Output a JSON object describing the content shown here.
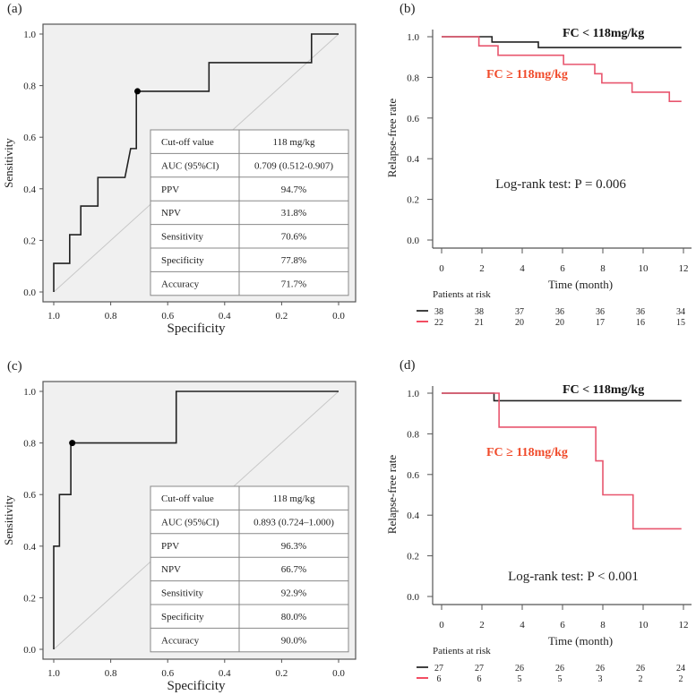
{
  "chart_data": [
    {
      "panel": "(a)",
      "type": "line",
      "subtype": "roc",
      "xlabel": "Specificity",
      "ylabel": "Sensitivity",
      "xlim": [
        1.0,
        0.0
      ],
      "ylim": [
        0.0,
        1.0
      ],
      "xticks": [
        "1.0",
        "0.8",
        "0.6",
        "0.4",
        "0.2",
        "0.0"
      ],
      "yticks": [
        "0.0",
        "0.2",
        "0.4",
        "0.6",
        "0.8",
        "1.0"
      ],
      "curve": [
        [
          1.0,
          0.0
        ],
        [
          1.0,
          0.111
        ],
        [
          0.944,
          0.111
        ],
        [
          0.944,
          0.222
        ],
        [
          0.905,
          0.222
        ],
        [
          0.905,
          0.333
        ],
        [
          0.845,
          0.333
        ],
        [
          0.845,
          0.444
        ],
        [
          0.75,
          0.444
        ],
        [
          0.73,
          0.556
        ],
        [
          0.71,
          0.556
        ],
        [
          0.71,
          0.778
        ],
        [
          0.455,
          0.778
        ],
        [
          0.455,
          0.889
        ],
        [
          0.095,
          0.889
        ],
        [
          0.095,
          1.0
        ],
        [
          0.0,
          1.0
        ]
      ],
      "cutoff_point": [
        0.706,
        0.778
      ],
      "table": [
        [
          "Cut-off value",
          "118 mg/kg"
        ],
        [
          "AUC (95%CI)",
          "0.709 (0.512-0.907)"
        ],
        [
          "PPV",
          "94.7%"
        ],
        [
          "NPV",
          "31.8%"
        ],
        [
          "Sensitivity",
          "70.6%"
        ],
        [
          "Specificity",
          "77.8%"
        ],
        [
          "Accuracy",
          "71.7%"
        ]
      ]
    },
    {
      "panel": "(b)",
      "type": "line",
      "subtype": "kaplan-meier",
      "xlabel": "Time (month)",
      "ylabel": "Relapse-free rate",
      "xlim": [
        0,
        12
      ],
      "ylim": [
        0.0,
        1.0
      ],
      "xticks": [
        "0",
        "2",
        "4",
        "6",
        "8",
        "10",
        "12"
      ],
      "yticks": [
        "0.0",
        "0.2",
        "0.4",
        "0.6",
        "0.8",
        "1.0"
      ],
      "series": [
        {
          "name": "FC < 118mg/kg",
          "color": "#222222",
          "steps": [
            [
              0,
              1.0
            ],
            [
              2.5,
              0.974
            ],
            [
              4.8,
              0.947
            ],
            [
              11.9,
              0.947
            ]
          ]
        },
        {
          "name": "FC ≥ 118mg/kg",
          "color": "#e8566e",
          "label_color": "#f04a2a",
          "steps": [
            [
              0,
              1.0
            ],
            [
              1.85,
              0.955
            ],
            [
              2.8,
              0.909
            ],
            [
              6.05,
              0.864
            ],
            [
              7.6,
              0.818
            ],
            [
              7.95,
              0.773
            ],
            [
              9.45,
              0.727
            ],
            [
              11.3,
              0.682
            ],
            [
              11.9,
              0.682
            ]
          ]
        }
      ],
      "annotation": "Log-rank test: P = 0.006",
      "risk_title": "Patients at risk",
      "risk": [
        [
          "38",
          "38",
          "37",
          "36",
          "36",
          "36",
          "34"
        ],
        [
          "22",
          "21",
          "20",
          "20",
          "17",
          "16",
          "15"
        ]
      ]
    },
    {
      "panel": "(c)",
      "type": "line",
      "subtype": "roc",
      "xlabel": "Specificity",
      "ylabel": "Sensitivity",
      "xlim": [
        1.0,
        0.0
      ],
      "ylim": [
        0.0,
        1.0
      ],
      "xticks": [
        "1.0",
        "0.8",
        "0.6",
        "0.4",
        "0.2",
        "0.0"
      ],
      "yticks": [
        "0.0",
        "0.2",
        "0.4",
        "0.6",
        "0.8",
        "1.0"
      ],
      "curve": [
        [
          1.0,
          0.0
        ],
        [
          1.0,
          0.4
        ],
        [
          0.98,
          0.4
        ],
        [
          0.98,
          0.6
        ],
        [
          0.94,
          0.6
        ],
        [
          0.94,
          0.8
        ],
        [
          0.57,
          0.8
        ],
        [
          0.57,
          1.0
        ],
        [
          0.0,
          1.0
        ]
      ],
      "cutoff_point": [
        0.935,
        0.8
      ],
      "table": [
        [
          "Cut-off value",
          "118 mg/kg"
        ],
        [
          "AUC (95%CI)",
          "0.893 (0.724–1.000)"
        ],
        [
          "PPV",
          "96.3%"
        ],
        [
          "NPV",
          "66.7%"
        ],
        [
          "Sensitivity",
          "92.9%"
        ],
        [
          "Specificity",
          "80.0%"
        ],
        [
          "Accuracy",
          "90.0%"
        ]
      ]
    },
    {
      "panel": "(d)",
      "type": "line",
      "subtype": "kaplan-meier",
      "xlabel": "Time (month)",
      "ylabel": "Relapse-free rate",
      "xlim": [
        0,
        12
      ],
      "ylim": [
        0.0,
        1.0
      ],
      "xticks": [
        "0",
        "2",
        "4",
        "6",
        "8",
        "10",
        "12"
      ],
      "yticks": [
        "0.0",
        "0.2",
        "0.4",
        "0.6",
        "0.8",
        "1.0"
      ],
      "series": [
        {
          "name": "FC < 118mg/kg",
          "color": "#222222",
          "steps": [
            [
              0,
              1.0
            ],
            [
              2.6,
              0.963
            ],
            [
              11.9,
              0.963
            ]
          ]
        },
        {
          "name": "FC ≥ 118mg/kg",
          "color": "#e8566e",
          "label_color": "#f04a2a",
          "steps": [
            [
              0,
              1.0
            ],
            [
              2.85,
              0.833
            ],
            [
              7.65,
              0.667
            ],
            [
              8.0,
              0.5
            ],
            [
              9.5,
              0.333
            ],
            [
              11.9,
              0.333
            ]
          ]
        }
      ],
      "annotation": "Log-rank test: P < 0.001",
      "risk_title": "Patients at risk",
      "risk": [
        [
          "27",
          "27",
          "26",
          "26",
          "26",
          "26",
          "24"
        ],
        [
          "6",
          "6",
          "5",
          "5",
          "3",
          "2",
          "2"
        ]
      ]
    }
  ]
}
